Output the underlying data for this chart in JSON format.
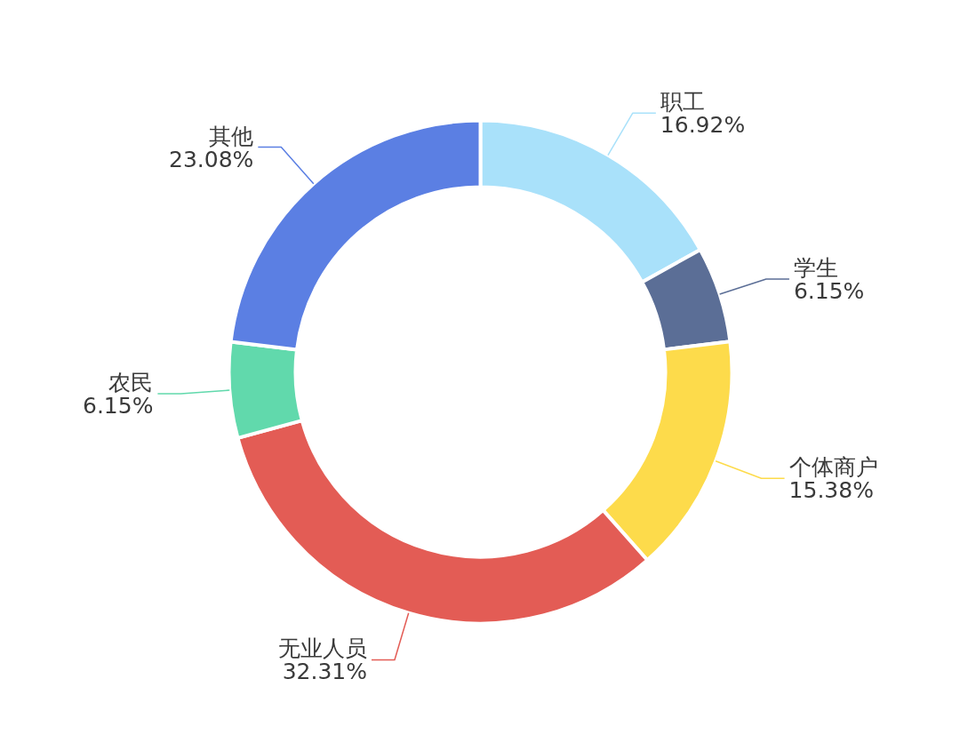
{
  "chart_data": {
    "type": "donut",
    "categories": [
      "职工",
      "学生",
      "个体商户",
      "无业人员",
      "农民",
      "其他"
    ],
    "values": [
      16.92,
      6.15,
      15.38,
      32.31,
      6.15,
      23.08
    ],
    "colors": [
      "#a9e1fa",
      "#5b6e96",
      "#fddb4b",
      "#e35c55",
      "#61d9ac",
      "#5b7fe3"
    ],
    "value_labels": [
      "16.92%",
      "6.15%",
      "15.38%",
      "32.31%",
      "6.15%",
      "23.08%"
    ]
  }
}
